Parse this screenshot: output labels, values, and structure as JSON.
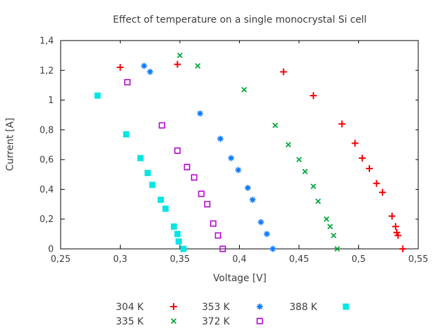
{
  "chart_data": {
    "type": "scatter",
    "title": "Effect of temperature on a single monocrystal Si cell",
    "xlabel": "Voltage [V]",
    "ylabel": "Current [A]",
    "xlim": [
      0.25,
      0.55
    ],
    "ylim": [
      0,
      1.4
    ],
    "grid": false,
    "decimal_separator": ",",
    "legend_position": "below-plot-center",
    "legend_layout": {
      "columns": 3,
      "rows": 2,
      "order": "column-major"
    },
    "x_ticks": [
      {
        "value": 0.25,
        "label": "0,25"
      },
      {
        "value": 0.3,
        "label": "0,3"
      },
      {
        "value": 0.35,
        "label": "0,35"
      },
      {
        "value": 0.4,
        "label": "0,4"
      },
      {
        "value": 0.45,
        "label": "0,45"
      },
      {
        "value": 0.5,
        "label": "0,5"
      },
      {
        "value": 0.55,
        "label": "0,55"
      }
    ],
    "y_ticks": [
      {
        "value": 0.0,
        "label": "0"
      },
      {
        "value": 0.2,
        "label": "0,2"
      },
      {
        "value": 0.4,
        "label": "0,4"
      },
      {
        "value": 0.6,
        "label": "0,6"
      },
      {
        "value": 0.8,
        "label": "0,8"
      },
      {
        "value": 1.0,
        "label": "1"
      },
      {
        "value": 1.2,
        "label": "1,2"
      },
      {
        "value": 1.4,
        "label": "1,4"
      }
    ],
    "series": [
      {
        "name": "304 K",
        "marker": "plus",
        "color": "#f20000",
        "points": [
          [
            0.3,
            1.22
          ],
          [
            0.348,
            1.24
          ],
          [
            0.437,
            1.19
          ],
          [
            0.462,
            1.03
          ],
          [
            0.486,
            0.84
          ],
          [
            0.497,
            0.71
          ],
          [
            0.503,
            0.61
          ],
          [
            0.509,
            0.54
          ],
          [
            0.515,
            0.44
          ],
          [
            0.52,
            0.38
          ],
          [
            0.528,
            0.22
          ],
          [
            0.531,
            0.15
          ],
          [
            0.532,
            0.11
          ],
          [
            0.533,
            0.09
          ],
          [
            0.537,
            0.0
          ]
        ]
      },
      {
        "name": "335 K",
        "marker": "x",
        "color": "#00a839",
        "points": [
          [
            0.35,
            1.3
          ],
          [
            0.365,
            1.23
          ],
          [
            0.404,
            1.07
          ],
          [
            0.43,
            0.83
          ],
          [
            0.441,
            0.7
          ],
          [
            0.45,
            0.6
          ],
          [
            0.455,
            0.52
          ],
          [
            0.462,
            0.42
          ],
          [
            0.466,
            0.32
          ],
          [
            0.473,
            0.2
          ],
          [
            0.476,
            0.15
          ],
          [
            0.479,
            0.09
          ],
          [
            0.482,
            0.0
          ]
        ]
      },
      {
        "name": "353 K",
        "marker": "asterisk",
        "color": "#0f7bff",
        "points": [
          [
            0.32,
            1.23
          ],
          [
            0.325,
            1.19
          ],
          [
            0.367,
            0.91
          ],
          [
            0.384,
            0.74
          ],
          [
            0.393,
            0.61
          ],
          [
            0.399,
            0.53
          ],
          [
            0.407,
            0.41
          ],
          [
            0.411,
            0.33
          ],
          [
            0.418,
            0.18
          ],
          [
            0.423,
            0.1
          ],
          [
            0.428,
            0.0
          ]
        ]
      },
      {
        "name": "372 K",
        "marker": "open-square",
        "color": "#bb10d4",
        "points": [
          [
            0.306,
            1.12
          ],
          [
            0.335,
            0.83
          ],
          [
            0.348,
            0.66
          ],
          [
            0.356,
            0.55
          ],
          [
            0.362,
            0.48
          ],
          [
            0.368,
            0.37
          ],
          [
            0.373,
            0.3
          ],
          [
            0.378,
            0.17
          ],
          [
            0.382,
            0.09
          ],
          [
            0.386,
            0.0
          ]
        ]
      },
      {
        "name": "388 K",
        "marker": "filled-square",
        "color": "#06e5e3",
        "points": [
          [
            0.281,
            1.03
          ],
          [
            0.305,
            0.77
          ],
          [
            0.317,
            0.61
          ],
          [
            0.323,
            0.51
          ],
          [
            0.327,
            0.43
          ],
          [
            0.334,
            0.33
          ],
          [
            0.338,
            0.27
          ],
          [
            0.345,
            0.15
          ],
          [
            0.348,
            0.1
          ],
          [
            0.349,
            0.05
          ],
          [
            0.353,
            0.0
          ]
        ]
      }
    ]
  },
  "colors": {
    "background": "#ffffff",
    "axis": "#000000",
    "text": "#3c3c3c"
  }
}
